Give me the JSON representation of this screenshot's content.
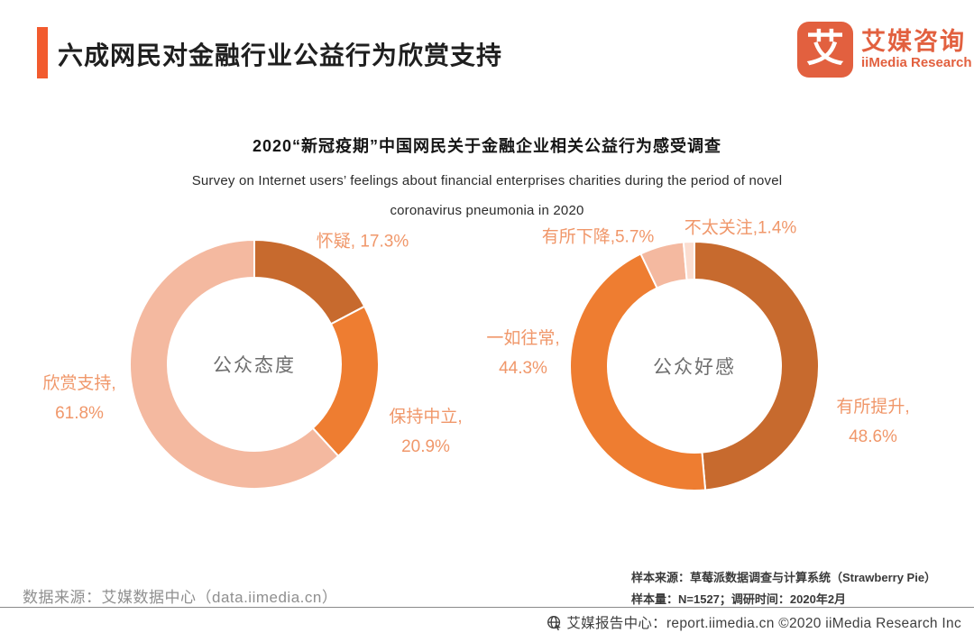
{
  "header": {
    "title": "六成网民对金融行业公益行为欣赏支持",
    "accent_color": "#F25B2E",
    "logo": {
      "glyph": "艾",
      "name_cn": "艾媒咨询",
      "name_en": "iiMedia Research",
      "brand_color": "#E2603F"
    }
  },
  "chart": {
    "title": "2020“新冠疫期”中国网民关于金融企业相关公益行为感受调查",
    "subtitle_line1": "Survey on Internet users’ feelings about financial enterprises charities during the period of novel",
    "subtitle_line2": "coronavirus pneumonia in 2020"
  },
  "chart_data": [
    {
      "type": "pie",
      "variant": "donut",
      "center_label": "公众态度",
      "categories": [
        "怀疑",
        "保持中立",
        "欣赏支持"
      ],
      "values": [
        17.3,
        20.9,
        61.8
      ],
      "colors": [
        "#C76A2E",
        "#EE7D31",
        "#F4B9A0"
      ],
      "labels": [
        [
          "怀疑, 17.3%"
        ],
        [
          "保持中立,",
          "20.9%"
        ],
        [
          "欣赏支持,",
          "61.8%"
        ]
      ],
      "start_angle_deg": 0,
      "direction": "clockwise"
    },
    {
      "type": "pie",
      "variant": "donut",
      "center_label": "公众好感",
      "categories": [
        "有所提升",
        "一如往常",
        "有所下降",
        "不太关注"
      ],
      "values": [
        48.6,
        44.3,
        5.7,
        1.4
      ],
      "colors": [
        "#C76A2E",
        "#EE7D31",
        "#F4B9A0",
        "#FBDDD0"
      ],
      "labels": [
        [
          "有所提升,",
          "48.6%"
        ],
        [
          "一如往常,",
          "44.3%"
        ],
        [
          "有所下降,5.7%"
        ],
        [
          "不太关注,1.4%"
        ]
      ],
      "start_angle_deg": 0,
      "direction": "clockwise"
    }
  ],
  "footnotes": {
    "data_source": "数据来源：艾媒数据中心（data.iimedia.cn）",
    "sample_source": "样本来源：草莓派数据调查与计算系统（Strawberry Pie）",
    "sample_size": "样本量：N=1527；调研时间：2020年2月"
  },
  "footer": {
    "text": "艾媒报告中心：report.iimedia.cn  ©2020  iiMedia Research Inc"
  }
}
